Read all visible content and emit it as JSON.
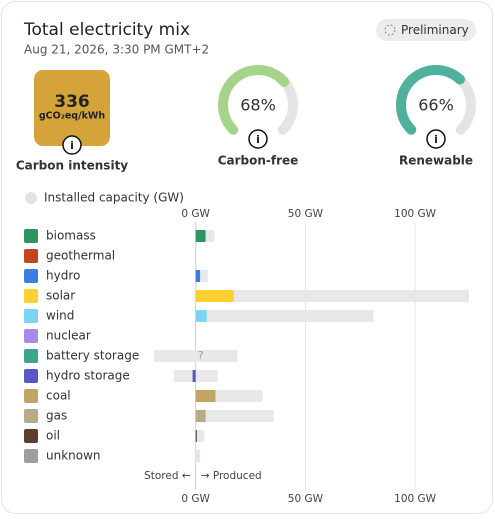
{
  "header": {
    "title": "Total electricity mix",
    "date": "Aug 21, 2026, 3:30 PM GMT+2",
    "badge": "Preliminary"
  },
  "carbon_intensity": {
    "value": 336,
    "unit": "gCO₂eq/kWh",
    "label": "Carbon intensity",
    "color": "#d4a43b"
  },
  "gauges": [
    {
      "value": 68,
      "label": "68%",
      "name": "Carbon-free",
      "color": "#a6d38b"
    },
    {
      "value": 66,
      "label": "66%",
      "name": "Renewable",
      "color": "#4fb09c"
    }
  ],
  "capacity_toggle": "Installed capacity (GW)",
  "chart_data": {
    "type": "bar",
    "orientation": "horizontal",
    "categories": [
      "biomass",
      "geothermal",
      "hydro",
      "solar",
      "wind",
      "nuclear",
      "battery storage",
      "hydro storage",
      "coal",
      "gas",
      "oil",
      "unknown"
    ],
    "storage": [
      false,
      false,
      false,
      false,
      false,
      false,
      true,
      true,
      false,
      false,
      false,
      false
    ],
    "values": [
      4.5,
      0,
      2,
      17.3,
      5,
      0,
      null,
      -1.4,
      9,
      4.5,
      0.5,
      0
    ],
    "value_labels": [
      null,
      null,
      null,
      null,
      null,
      null,
      "?",
      null,
      null,
      null,
      null,
      null
    ],
    "capacity": [
      8.6,
      0,
      5.5,
      124.5,
      81,
      0,
      19,
      10,
      30.5,
      35.5,
      4,
      2
    ],
    "capacity_color": "#e8e8e8",
    "colors": [
      "#2e9460",
      "#c0461c",
      "#3a7ee0",
      "#fbd030",
      "#7dd3f5",
      "#a98ae8",
      "#3da58a",
      "#5457c4",
      "#c3a563",
      "#b8a98a",
      "#5c3d2e",
      "#9e9e9e"
    ],
    "xlim": [
      -19,
      125
    ],
    "xticks": [
      {
        "value": 0,
        "label": "0 GW"
      },
      {
        "value": 50,
        "label": "50 GW"
      },
      {
        "value": 100,
        "label": "100 GW"
      }
    ],
    "grid": true,
    "stored_label": "Stored ←",
    "produced_label": "→ Produced"
  }
}
